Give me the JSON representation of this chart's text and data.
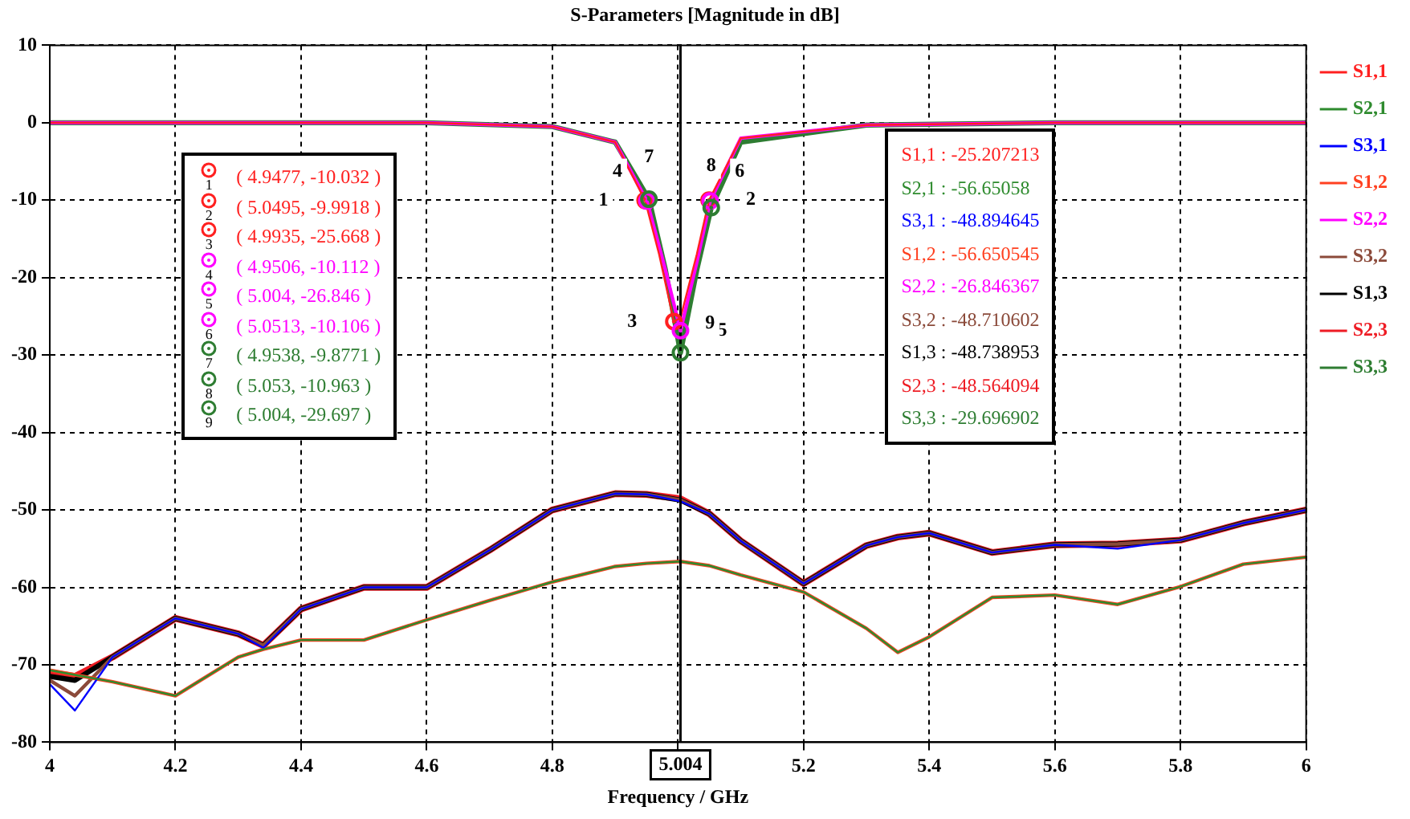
{
  "chart_data": {
    "type": "line",
    "title": "S-Parameters [Magnitude in dB]",
    "xlabel": "Frequency / GHz",
    "x": [
      4.0,
      4.04,
      4.1,
      4.2,
      4.3,
      4.34,
      4.4,
      4.5,
      4.6,
      4.7,
      4.8,
      4.9,
      4.95,
      5.004,
      5.05,
      5.1,
      5.2,
      5.3,
      5.35,
      5.4,
      5.5,
      5.6,
      5.7,
      5.8,
      5.9,
      6.0
    ],
    "series": [
      {
        "name": "S1,1",
        "color": "#ff2020",
        "x": [
          4,
          4.3,
          4.6,
          4.8,
          4.9,
          4.9477,
          4.97,
          4.9935,
          5.004,
          5.03,
          5.0495,
          5.1,
          5.3,
          5.6,
          6
        ],
        "values": [
          0,
          0,
          0,
          -0.5,
          -2.5,
          -10.032,
          -17,
          -25.668,
          -25.207,
          -17,
          -9.9918,
          -2,
          -0.3,
          0,
          0
        ]
      },
      {
        "name": "S2,1",
        "color": "#2e8b2e",
        "values": [
          -70.7,
          -71.3,
          -72.2,
          -74,
          -69,
          -68,
          -66.8,
          -66.8,
          -64.2,
          -61.7,
          -59.3,
          -57.3,
          -56.9,
          -56.65,
          -57.2,
          -58.4,
          -60.6,
          -65.3,
          -68.4,
          -66.4,
          -61.3,
          -61,
          -62.2,
          -59.9,
          -57,
          -56.1
        ]
      },
      {
        "name": "S3,1",
        "color": "#0000ff",
        "values": [
          -72.5,
          -75.9,
          -69,
          -64,
          -66,
          -67.8,
          -62.8,
          -60,
          -60,
          -55.2,
          -50,
          -47.9,
          -48,
          -48.89,
          -50.5,
          -54,
          -59.5,
          -54.6,
          -53.5,
          -53,
          -55.5,
          -54.5,
          -55,
          -53.9,
          -51.7,
          -50
        ]
      },
      {
        "name": "S1,2",
        "color": "#ff4020",
        "values": [
          -70.7,
          -71.3,
          -72.2,
          -74,
          -69,
          -68,
          -66.8,
          -66.8,
          -64.2,
          -61.7,
          -59.3,
          -57.3,
          -56.9,
          -56.65,
          -57.2,
          -58.4,
          -60.6,
          -65.3,
          -68.4,
          -66.4,
          -61.3,
          -61,
          -62.2,
          -59.9,
          -57,
          -56.1
        ]
      },
      {
        "name": "S2,2",
        "color": "#ff00ff",
        "x": [
          4,
          4.3,
          4.6,
          4.8,
          4.9,
          4.9506,
          4.98,
          5.004,
          5.03,
          5.0513,
          5.1,
          5.3,
          5.6,
          6
        ],
        "values": [
          0,
          0,
          0,
          -0.5,
          -2.5,
          -10.112,
          -19,
          -26.846,
          -18,
          -10.106,
          -2,
          -0.3,
          0,
          0
        ]
      },
      {
        "name": "S3,2",
        "color": "#8b4a3a",
        "values": [
          -72,
          -74,
          -69,
          -64,
          -66,
          -67.5,
          -62.8,
          -60,
          -60,
          -55.2,
          -50,
          -47.9,
          -48,
          -48.71,
          -50.5,
          -54,
          -59.5,
          -54.6,
          -53.5,
          -53,
          -55.5,
          -54.5,
          -54.4,
          -53.9,
          -51.7,
          -50
        ]
      },
      {
        "name": "S1,3",
        "color": "#000000",
        "values": [
          -71.5,
          -72,
          -69,
          -64,
          -66,
          -67.5,
          -62.8,
          -60,
          -60,
          -55.2,
          -50,
          -47.9,
          -48,
          -48.74,
          -50.5,
          -54,
          -59.5,
          -54.6,
          -53.5,
          -53,
          -55.5,
          -54.5,
          -54.4,
          -53.9,
          -51.7,
          -50
        ]
      },
      {
        "name": "S2,3",
        "color": "#ee1c24",
        "values": [
          -71,
          -71.5,
          -69,
          -64,
          -66,
          -67.5,
          -62.8,
          -60,
          -60,
          -55.2,
          -50,
          -47.9,
          -48,
          -48.56,
          -50.5,
          -54,
          -59.5,
          -54.6,
          -53.5,
          -53,
          -55.5,
          -54.5,
          -54.4,
          -53.9,
          -51.7,
          -50
        ]
      },
      {
        "name": "S3,3",
        "color": "#2e7d32",
        "x": [
          4,
          4.3,
          4.6,
          4.8,
          4.9,
          4.9538,
          4.98,
          5.004,
          5.03,
          5.053,
          5.1,
          5.3,
          5.6,
          6
        ],
        "values": [
          0,
          0,
          0,
          -0.5,
          -2.5,
          -9.8771,
          -19,
          -29.697,
          -19,
          -10.963,
          -2.5,
          -0.3,
          0,
          0
        ]
      }
    ],
    "xlim": [
      4,
      6
    ],
    "xticks": [
      4,
      4.2,
      4.4,
      4.6,
      4.8,
      {
        "value": 5,
        "label": null
      },
      5.2,
      5.4,
      5.6,
      5.8,
      6
    ],
    "ylim": [
      -80,
      10
    ],
    "yticks": [
      -80,
      -70,
      -60,
      -50,
      -40,
      -30,
      -20,
      -10,
      0,
      10
    ],
    "grid": true,
    "legend": "right",
    "marker": "none",
    "line_style": "solid",
    "ref_lines": [
      {
        "axis": "x",
        "value": 5.004,
        "label": "5.004",
        "color": "#000000"
      }
    ],
    "annotations": [
      "( 4.9477, -10.032 )",
      "( 5.0495, -9.9918 )",
      "( 4.9935, -25.668 )",
      "( 4.9506, -10.112 )",
      "( 5.004, -26.846 )",
      "( 5.0513, -10.106 )",
      "( 4.9538, -9.8771 )",
      "( 5.053, -10.963 )",
      "( 5.004, -29.697 )",
      "S1,1 : -25.207213",
      "S2,1 : -56.65058",
      "S3,1 : -48.894645",
      "S1,2 : -56.650545",
      "S2,2 : -26.846367",
      "S3,2 : -48.710602",
      "S1,3 : -48.738953",
      "S2,3 : -48.564094",
      "S3,3 : -29.696902",
      {
        "text": "1",
        "x": 4.9477,
        "y": -10.032
      },
      {
        "text": "2",
        "x": 5.0495,
        "y": -9.9918
      },
      {
        "text": "3",
        "x": 4.9935,
        "y": -25.668
      },
      {
        "text": "4",
        "x": 4.9506,
        "y": -10.112
      },
      {
        "text": "5",
        "x": 5.004,
        "y": -26.846
      },
      {
        "text": "6",
        "x": 5.0513,
        "y": -10.106
      },
      {
        "text": "7",
        "x": 4.9538,
        "y": -9.8771
      },
      {
        "text": "8",
        "x": 5.053,
        "y": -10.963
      },
      {
        "text": "9",
        "x": 5.004,
        "y": -29.697
      }
    ]
  }
}
